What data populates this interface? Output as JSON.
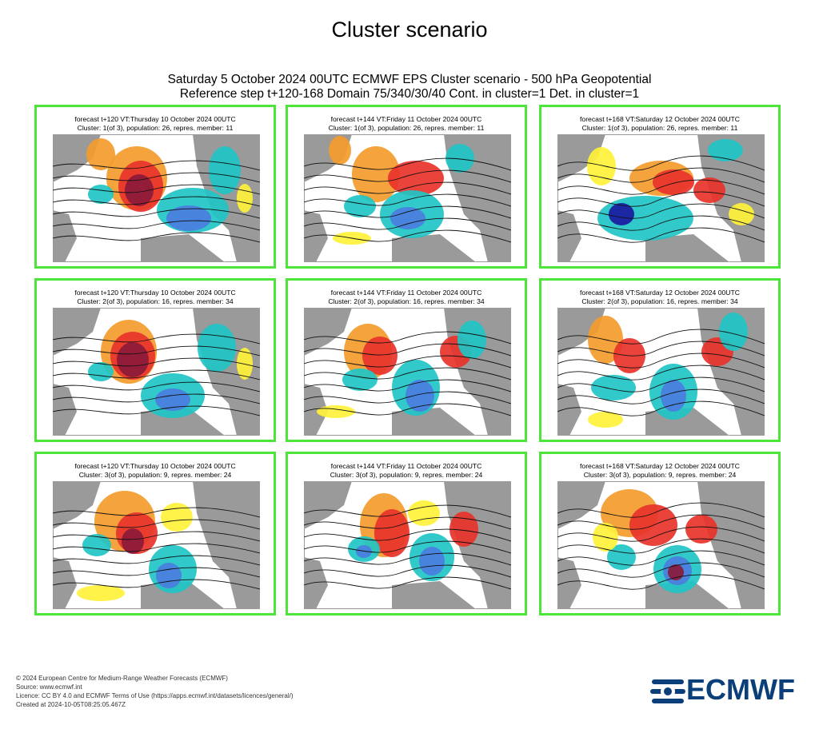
{
  "page": {
    "title": "Cluster scenario",
    "subtitle_line1": "Saturday 5 October 2024 00UTC ECMWF EPS Cluster scenario - 500 hPa Geopotential",
    "subtitle_line2": "Reference step t+120-168 Domain 75/340/30/40 Cont. in cluster=1 Det. in cluster=1"
  },
  "panels": [
    {
      "line1": "forecast t+120 VT:Thursday 10 October 2024 00UTC",
      "line2": "Cluster: 1(of 3), population: 26, repres. member: 11"
    },
    {
      "line1": "forecast t+144 VT:Friday 11 October 2024 00UTC",
      "line2": "Cluster: 1(of 3), population: 26, repres. member: 11"
    },
    {
      "line1": "forecast t+168 VT:Saturday 12 October 2024 00UTC",
      "line2": "Cluster: 1(of 3), population: 26, repres. member: 11"
    },
    {
      "line1": "forecast t+120 VT:Thursday 10 October 2024 00UTC",
      "line2": "Cluster: 2(of 3), population: 16, repres. member: 34"
    },
    {
      "line1": "forecast t+144 VT:Friday 11 October 2024 00UTC",
      "line2": "Cluster: 2(of 3), population: 16, repres. member: 34"
    },
    {
      "line1": "forecast t+168 VT:Saturday 12 October 2024 00UTC",
      "line2": "Cluster: 2(of 3), population: 16, repres. member: 34"
    },
    {
      "line1": "forecast t+120 VT:Thursday 10 October 2024 00UTC",
      "line2": "Cluster: 3(of 3), population: 9, repres. member: 24"
    },
    {
      "line1": "forecast t+144 VT:Friday 11 October 2024 00UTC",
      "line2": "Cluster: 3(of 3), population: 9, repres. member: 24"
    },
    {
      "line1": "forecast t+168 VT:Saturday 12 October 2024 00UTC",
      "line2": "Cluster: 3(of 3), population: 9, repres. member: 24"
    }
  ],
  "footer": {
    "copyright": "© 2024 European Centre for Medium-Range Weather Forecasts (ECMWF)",
    "source": "Source: www.ecmwf.int",
    "licence": "Licence: CC BY 4.0 and ECMWF Terms of Use (https://apps.ecmwf.int/datasets/licences/general/)",
    "created": "Created at 2024-10-05T08:25:05.467Z"
  },
  "logo": {
    "text": "ECMWF",
    "color": "#0b3f7a"
  },
  "colors": {
    "panel_border": "#4ee53a",
    "land": "#9a9a9a",
    "sea": "#ffffff",
    "positive_anomaly_strong": "#8b1a3a",
    "positive_anomaly": "#e8332a",
    "positive_anomaly_weak": "#f39b2c",
    "positive_anomaly_light": "#fff23a",
    "negative_anomaly_light": "#7ee8d0",
    "negative_anomaly": "#1fc4c4",
    "negative_anomaly_strong": "#4a7de0",
    "negative_anomaly_deep": "#1a1aa0"
  }
}
